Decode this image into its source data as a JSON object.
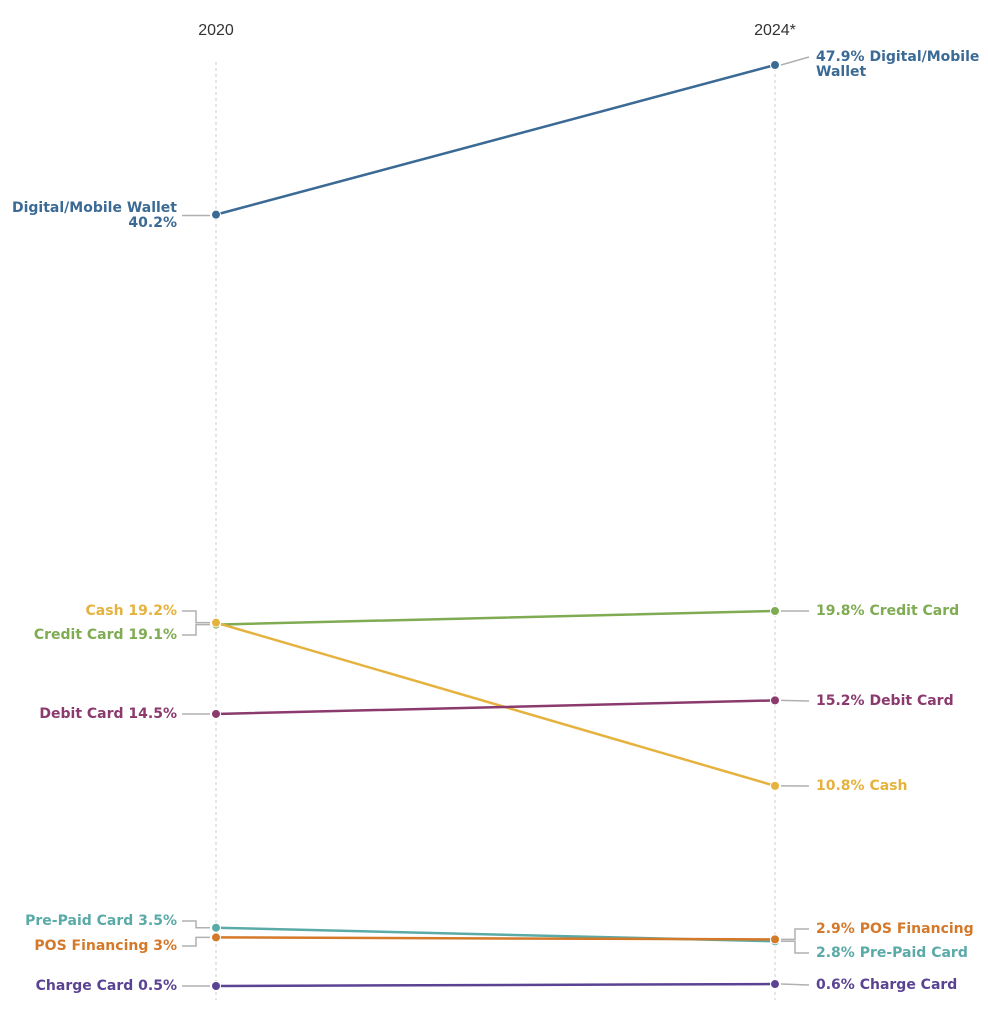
{
  "chart_data": {
    "type": "slope",
    "x": [
      "2020",
      "2024*"
    ],
    "ylim": [
      0,
      48
    ],
    "series": [
      {
        "name": "Digital/Mobile Wallet",
        "values": [
          40.2,
          47.9
        ],
        "color": "#3b6a95",
        "left_label": [
          "Digital/Mobile Wallet",
          "40.2%"
        ],
        "right_label": [
          "47.9% Digital/Mobile",
          "Wallet"
        ]
      },
      {
        "name": "Credit Card",
        "values": [
          19.1,
          19.8
        ],
        "color": "#7fab52",
        "left_label": [
          "Credit Card 19.1%"
        ],
        "right_label": [
          "19.8% Credit Card"
        ]
      },
      {
        "name": "Cash",
        "values": [
          19.2,
          10.8
        ],
        "color": "#e6b23e",
        "left_label": [
          "Cash 19.2%"
        ],
        "right_label": [
          "10.8% Cash"
        ]
      },
      {
        "name": "Debit Card",
        "values": [
          14.5,
          15.2
        ],
        "color": "#8b3a6e",
        "left_label": [
          "Debit Card 14.5%"
        ],
        "right_label": [
          "15.2% Debit Card"
        ]
      },
      {
        "name": "Pre-Paid Card",
        "values": [
          3.5,
          2.8
        ],
        "color": "#5aaaa8",
        "left_label": [
          "Pre-Paid Card 3.5%"
        ],
        "right_label": [
          "2.8% Pre-Paid Card"
        ]
      },
      {
        "name": "POS Financing",
        "values": [
          3,
          2.9
        ],
        "color": "#d4792a",
        "left_label": [
          "POS Financing 3%"
        ],
        "right_label": [
          "2.9% POS Financing"
        ]
      },
      {
        "name": "Charge Card",
        "values": [
          0.5,
          0.6
        ],
        "color": "#5b4393",
        "left_label": [
          "Charge Card 0.5%"
        ],
        "right_label": [
          "0.6% Charge Card"
        ]
      }
    ]
  }
}
